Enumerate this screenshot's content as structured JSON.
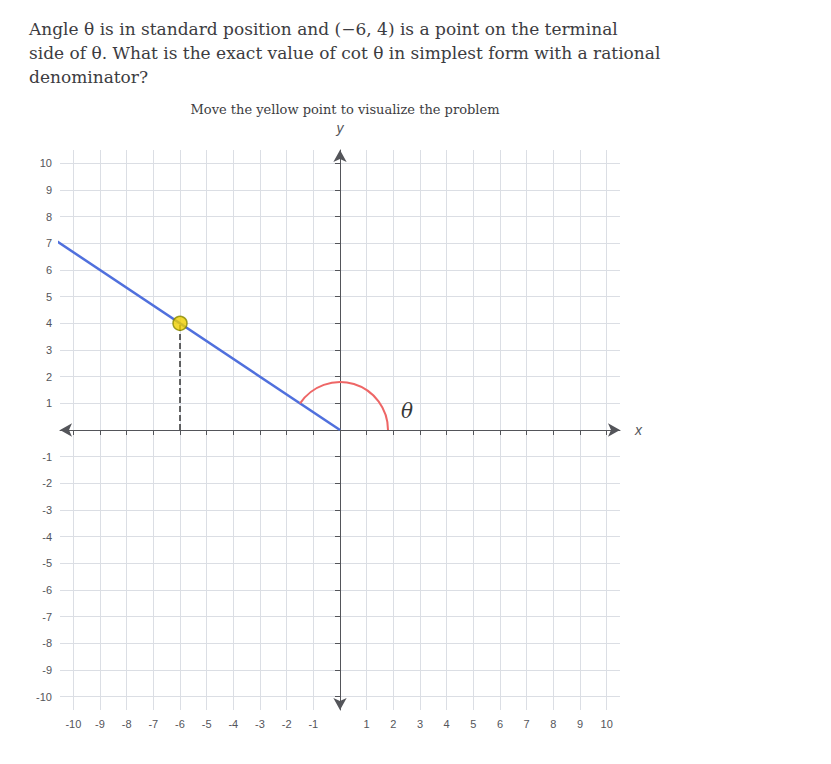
{
  "chart_data": {
    "type": "scatter",
    "title": "Angle θ is in standard position and (−6, 4) is a point on the terminal\nside of θ. What is the exact value of cot θ in simplest form with a rational\ndenominator?",
    "subtitle": "Move the yellow point to visualize the problem",
    "x_label": "x",
    "y_label": "y",
    "x": [
      -6
    ],
    "values": [
      4
    ],
    "color": "#f0d000",
    "marker": "circle",
    "xlim": [
      -10.5,
      10.5
    ],
    "xticks": [
      -10,
      -9,
      -8,
      -7,
      -6,
      -5,
      -4,
      -3,
      -2,
      -1,
      1,
      2,
      3,
      4,
      5,
      6,
      7,
      8,
      9,
      10
    ],
    "ylim": [
      -10.5,
      10.5
    ],
    "yticks": [
      -10,
      -9,
      -8,
      -7,
      -6,
      -5,
      -4,
      -3,
      -2,
      -1,
      1,
      2,
      3,
      4,
      5,
      6,
      7,
      8,
      9,
      10
    ],
    "grid": true,
    "annotations": [
      {
        "text": "θ",
        "x": 2.1,
        "y": 0.7
      }
    ]
  }
}
